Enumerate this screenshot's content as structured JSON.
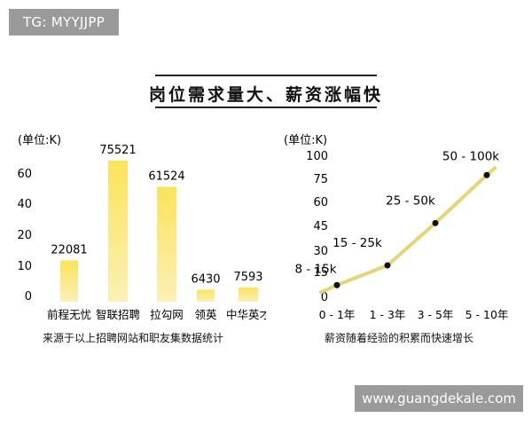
{
  "watermarks": {
    "top_left": "TG: MYYJJPP",
    "bottom_right": "www.guangdekale.com"
  },
  "page_title": "岗位需求量大、薪资涨幅快",
  "colors": {
    "bar_top": "#fbe35a",
    "bar_bottom": "#fbf0b6",
    "line": "#e6d575",
    "point": "#111111"
  },
  "chart_data": [
    {
      "type": "bar",
      "unit_label": "(单位:K)",
      "categories": [
        "前程无忧",
        "智联招聘",
        "拉勾网",
        "领英",
        "中华英才"
      ],
      "values": [
        22081,
        75521,
        61524,
        6430,
        7593
      ],
      "value_labels": [
        "22081",
        "75521",
        "61524",
        "6430",
        "7593"
      ],
      "y_ticks": [
        "0",
        "10",
        "20",
        "40",
        "60"
      ],
      "caption": "来源于以上招聘网站和职友集数据统计"
    },
    {
      "type": "line",
      "unit_label": "(单位:K)",
      "categories": [
        "0 - 1年",
        "1 - 3年",
        "3 - 5年",
        "5 - 10年"
      ],
      "values": [
        8,
        22,
        52,
        86
      ],
      "start_value": 3,
      "end_value": 91,
      "annotations": [
        "8 - 15k",
        "15 - 25k",
        "25 - 50k",
        "50 - 100k"
      ],
      "y_ticks": [
        "0",
        "15",
        "30",
        "45",
        "60",
        "75",
        "100"
      ],
      "ylim": [
        0,
        100
      ],
      "caption": "薪资随着经验的积累而快速增长"
    }
  ]
}
